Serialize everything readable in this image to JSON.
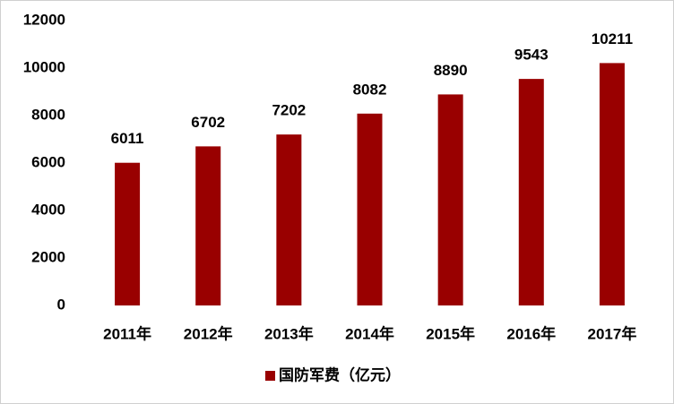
{
  "chart_data": {
    "type": "bar",
    "categories": [
      "2011年",
      "2012年",
      "2013年",
      "2014年",
      "2015年",
      "2016年",
      "2017年"
    ],
    "series": [
      {
        "name": "国防军费（亿元）",
        "color": "#990000",
        "values": [
          6011,
          6702,
          7202,
          8082,
          8890,
          9543,
          10211
        ]
      }
    ],
    "ylim": [
      0,
      12000
    ],
    "yticks": [
      0,
      2000,
      4000,
      6000,
      8000,
      10000,
      12000
    ],
    "grid": false,
    "legend": "bottom"
  }
}
